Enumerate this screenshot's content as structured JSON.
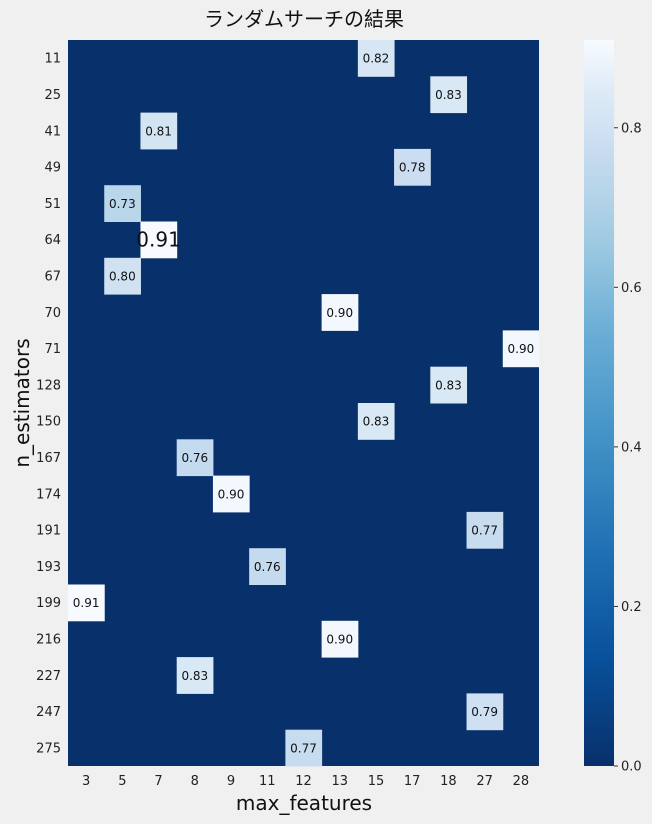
{
  "chart_data": {
    "type": "heatmap",
    "title": "ランダムサーチの結果",
    "xlabel": "max_features",
    "ylabel": "n_estimators",
    "x_categories": [
      "3",
      "5",
      "7",
      "8",
      "9",
      "11",
      "12",
      "13",
      "15",
      "17",
      "18",
      "27",
      "28"
    ],
    "y_categories": [
      "11",
      "25",
      "41",
      "49",
      "51",
      "64",
      "67",
      "70",
      "71",
      "128",
      "150",
      "167",
      "174",
      "191",
      "193",
      "199",
      "216",
      "227",
      "247",
      "275"
    ],
    "cells": [
      {
        "y": "11",
        "x": "15",
        "value": 0.82,
        "label": "0.82"
      },
      {
        "y": "25",
        "x": "18",
        "value": 0.83,
        "label": "0.83"
      },
      {
        "y": "41",
        "x": "7",
        "value": 0.81,
        "label": "0.81"
      },
      {
        "y": "49",
        "x": "17",
        "value": 0.78,
        "label": "0.78"
      },
      {
        "y": "51",
        "x": "5",
        "value": 0.73,
        "label": "0.73"
      },
      {
        "y": "64",
        "x": "7",
        "value": 0.91,
        "label": "0.91",
        "highlight": true
      },
      {
        "y": "67",
        "x": "5",
        "value": 0.8,
        "label": "0.80"
      },
      {
        "y": "70",
        "x": "13",
        "value": 0.9,
        "label": "0.90"
      },
      {
        "y": "71",
        "x": "28",
        "value": 0.9,
        "label": "0.90"
      },
      {
        "y": "128",
        "x": "18",
        "value": 0.83,
        "label": "0.83"
      },
      {
        "y": "150",
        "x": "15",
        "value": 0.83,
        "label": "0.83"
      },
      {
        "y": "167",
        "x": "8",
        "value": 0.76,
        "label": "0.76"
      },
      {
        "y": "174",
        "x": "9",
        "value": 0.9,
        "label": "0.90"
      },
      {
        "y": "191",
        "x": "27",
        "value": 0.77,
        "label": "0.77"
      },
      {
        "y": "193",
        "x": "11",
        "value": 0.76,
        "label": "0.76"
      },
      {
        "y": "199",
        "x": "3",
        "value": 0.91,
        "label": "0.91"
      },
      {
        "y": "216",
        "x": "13",
        "value": 0.9,
        "label": "0.90"
      },
      {
        "y": "227",
        "x": "8",
        "value": 0.83,
        "label": "0.83"
      },
      {
        "y": "247",
        "x": "27",
        "value": 0.79,
        "label": "0.79"
      },
      {
        "y": "275",
        "x": "12",
        "value": 0.77,
        "label": "0.77"
      }
    ],
    "empty_value": 0.0,
    "colormap": "Blues_r",
    "colorbar": {
      "range": [
        0.0,
        0.91
      ],
      "ticks": [
        0.0,
        0.2,
        0.4,
        0.6,
        0.8
      ],
      "tick_labels": [
        "0.0",
        "0.2",
        "0.4",
        "0.6",
        "0.8"
      ],
      "placement": "right"
    },
    "grid": false
  }
}
